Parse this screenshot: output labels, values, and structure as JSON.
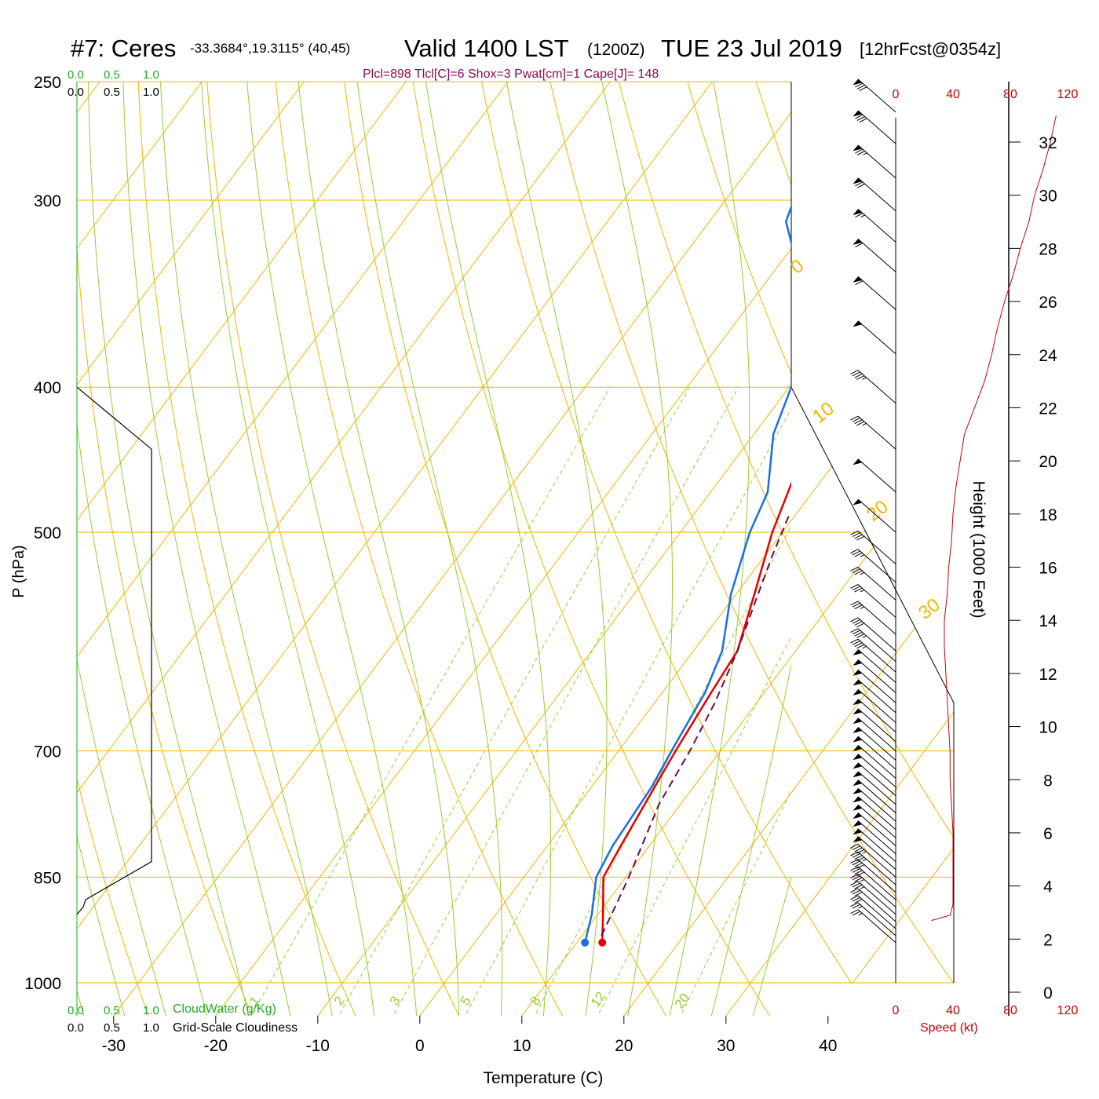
{
  "title": {
    "station": "#7: Ceres",
    "coords": "-33.3684°,19.3115° (40,45)",
    "valid": "Valid 1400 LST",
    "zulu": "(1200Z)",
    "date": "TUE 23 Jul 2019",
    "fcst": "[12hrFcst@0354z]"
  },
  "indices": "Plcl=898 Tlcl[C]=6 Shox=3 Pwat[cm]=1 Cape[J]= 148",
  "cloud_scale_top": {
    "green": [
      "0.0",
      "0.5",
      "1.0"
    ],
    "black": [
      "0.0",
      "0.5",
      "1.0"
    ]
  },
  "cloud_scale_bottom": {
    "green": [
      "0.0",
      "0.5",
      "1.0"
    ],
    "black": [
      "0.0",
      "0.5",
      "1.0"
    ]
  },
  "cloud_water_label": "CloudWater (g/Kg)",
  "cloudiness_label": "Grid-Scale Cloudiness",
  "speed_label": "Speed (kt)",
  "height_label": "Height (1000 Feet)",
  "colors": {
    "isotherm": "#f2b400",
    "mixing": "#99cc33",
    "temperature": "#e60000",
    "dewpoint": "#1a6fe0",
    "parcel": "#6b0a4a",
    "cloudwater": "#22aa22",
    "wind_speed": "#cc0000"
  },
  "chart_data": {
    "type": "line",
    "xlabel": "Temperature (C)",
    "ylabel": "P (hPa)",
    "x_ticks": [
      -30,
      -20,
      -10,
      0,
      10,
      20,
      30,
      40
    ],
    "p_ticks": [
      250,
      300,
      400,
      500,
      700,
      850,
      1000
    ],
    "y_log": true,
    "xlim": [
      -33.6,
      36.4
    ],
    "plim": [
      250,
      1100
    ],
    "skewed_isotherm_labels": [
      "10",
      "0",
      "-10",
      "-20",
      "-30"
    ],
    "dry_adiabat_labels": [
      "0",
      "10",
      "20",
      "30"
    ],
    "mixing_ratio_labels": [
      "1",
      "2",
      "3",
      "5",
      "8",
      "12",
      "20"
    ],
    "series": [
      {
        "key": "temperature",
        "points": [
          [
            940,
            12.5
          ],
          [
            900,
            10.5
          ],
          [
            850,
            7.8
          ],
          [
            810,
            7.2
          ],
          [
            760,
            6.5
          ],
          [
            700,
            5.6
          ],
          [
            640,
            4.8
          ],
          [
            600,
            4.3
          ],
          [
            550,
            1.8
          ],
          [
            500,
            -1.0
          ],
          [
            460,
            -2.9
          ],
          [
            420,
            -4.4
          ],
          [
            400,
            -4.6
          ],
          [
            380,
            -4.6
          ],
          [
            360,
            -4.6
          ],
          [
            340,
            -3.8
          ],
          [
            320,
            -2.6
          ],
          [
            300,
            -1.8
          ],
          [
            290,
            -1.4
          ],
          [
            270,
            -0.9
          ]
        ]
      },
      {
        "key": "dewpoint",
        "points": [
          [
            940,
            10.8
          ],
          [
            900,
            9.4
          ],
          [
            850,
            7.1
          ],
          [
            810,
            6.4
          ],
          [
            780,
            6.2
          ],
          [
            740,
            5.9
          ],
          [
            700,
            5.2
          ],
          [
            640,
            4.2
          ],
          [
            600,
            2.8
          ],
          [
            550,
            -0.5
          ],
          [
            500,
            -3.2
          ],
          [
            470,
            -4.4
          ],
          [
            430,
            -8.1
          ],
          [
            400,
            -9.8
          ],
          [
            360,
            -12.9
          ],
          [
            330,
            -18.5
          ],
          [
            310,
            -22.5
          ],
          [
            300,
            -23.3
          ],
          [
            270,
            -25.3
          ]
        ]
      },
      {
        "key": "parcel",
        "points": [
          [
            930,
            11.9
          ],
          [
            898,
            11.3
          ],
          [
            850,
            10.3
          ],
          [
            800,
            9.0
          ],
          [
            760,
            7.9
          ],
          [
            700,
            7.0
          ],
          [
            650,
            5.9
          ],
          [
            600,
            4.3
          ],
          [
            560,
            2.6
          ],
          [
            520,
            0.8
          ],
          [
            485,
            -0.7
          ]
        ]
      }
    ],
    "surface_temperature": {
      "p": 940,
      "t": 12.5
    },
    "surface_dewpoint": {
      "p": 940,
      "t": 10.8
    },
    "cloudiness": [
      [
        400,
        0
      ],
      [
        440,
        0.95
      ],
      [
        830,
        0.95
      ],
      [
        880,
        0.11
      ],
      [
        890,
        0.08
      ],
      [
        900,
        0
      ]
    ],
    "wind_height_ticks": [
      0,
      2,
      4,
      6,
      8,
      10,
      12,
      14,
      16,
      18,
      20,
      22,
      24,
      26,
      28,
      30,
      32
    ],
    "wind_speed_ticks": [
      0,
      40,
      80,
      120
    ],
    "wind_speed_profile": [
      [
        2.7,
        25
      ],
      [
        2.9,
        38
      ],
      [
        3.3,
        40
      ],
      [
        3.8,
        40
      ],
      [
        5,
        40
      ],
      [
        6,
        40
      ],
      [
        7,
        39
      ],
      [
        8,
        38
      ],
      [
        9,
        38
      ],
      [
        10,
        37
      ],
      [
        11,
        36
      ],
      [
        12,
        35
      ],
      [
        13,
        34
      ],
      [
        14,
        34
      ],
      [
        15,
        36
      ],
      [
        16,
        37
      ],
      [
        17,
        39
      ],
      [
        18,
        40
      ],
      [
        19,
        42
      ],
      [
        20,
        45
      ],
      [
        21,
        48
      ],
      [
        22,
        55
      ],
      [
        23,
        62
      ],
      [
        24,
        67
      ],
      [
        25,
        71
      ],
      [
        26,
        76
      ],
      [
        27,
        82
      ],
      [
        28,
        87
      ],
      [
        29,
        93
      ],
      [
        30,
        97
      ],
      [
        31,
        103
      ],
      [
        32,
        108
      ],
      [
        33,
        112
      ]
    ],
    "wind_barbs": [
      {
        "p": 940,
        "dir": 300,
        "spd": 25
      },
      {
        "p": 930,
        "dir": 300,
        "spd": 28
      },
      {
        "p": 920,
        "dir": 295,
        "spd": 30
      },
      {
        "p": 910,
        "dir": 295,
        "spd": 32
      },
      {
        "p": 900,
        "dir": 293,
        "spd": 35
      },
      {
        "p": 890,
        "dir": 292,
        "spd": 38
      },
      {
        "p": 880,
        "dir": 290,
        "spd": 40
      },
      {
        "p": 870,
        "dir": 290,
        "spd": 42
      },
      {
        "p": 860,
        "dir": 290,
        "spd": 45
      },
      {
        "p": 850,
        "dir": 290,
        "spd": 48
      },
      {
        "p": 840,
        "dir": 290,
        "spd": 50
      },
      {
        "p": 830,
        "dir": 290,
        "spd": 50
      },
      {
        "p": 820,
        "dir": 290,
        "spd": 52
      },
      {
        "p": 810,
        "dir": 290,
        "spd": 52
      },
      {
        "p": 800,
        "dir": 290,
        "spd": 52
      },
      {
        "p": 790,
        "dir": 290,
        "spd": 52
      },
      {
        "p": 780,
        "dir": 290,
        "spd": 52
      },
      {
        "p": 770,
        "dir": 290,
        "spd": 52
      },
      {
        "p": 760,
        "dir": 290,
        "spd": 52
      },
      {
        "p": 750,
        "dir": 290,
        "spd": 52
      },
      {
        "p": 740,
        "dir": 290,
        "spd": 52
      },
      {
        "p": 730,
        "dir": 290,
        "spd": 52
      },
      {
        "p": 720,
        "dir": 290,
        "spd": 52
      },
      {
        "p": 710,
        "dir": 290,
        "spd": 52
      },
      {
        "p": 700,
        "dir": 290,
        "spd": 52
      },
      {
        "p": 690,
        "dir": 292,
        "spd": 52
      },
      {
        "p": 680,
        "dir": 295,
        "spd": 52
      },
      {
        "p": 670,
        "dir": 298,
        "spd": 52
      },
      {
        "p": 660,
        "dir": 300,
        "spd": 52
      },
      {
        "p": 650,
        "dir": 303,
        "spd": 52
      },
      {
        "p": 640,
        "dir": 305,
        "spd": 52
      },
      {
        "p": 630,
        "dir": 308,
        "spd": 50
      },
      {
        "p": 620,
        "dir": 310,
        "spd": 48
      },
      {
        "p": 610,
        "dir": 312,
        "spd": 45
      },
      {
        "p": 600,
        "dir": 315,
        "spd": 40
      },
      {
        "p": 585,
        "dir": 315,
        "spd": 35
      },
      {
        "p": 570,
        "dir": 315,
        "spd": 35
      },
      {
        "p": 555,
        "dir": 315,
        "spd": 35
      },
      {
        "p": 540,
        "dir": 315,
        "spd": 35
      },
      {
        "p": 525,
        "dir": 315,
        "spd": 40
      },
      {
        "p": 500,
        "dir": 315,
        "spd": 50
      },
      {
        "p": 470,
        "dir": 315,
        "spd": 50
      },
      {
        "p": 440,
        "dir": 315,
        "spd": 45
      },
      {
        "p": 410,
        "dir": 315,
        "spd": 45
      },
      {
        "p": 380,
        "dir": 315,
        "spd": 50
      },
      {
        "p": 355,
        "dir": 315,
        "spd": 60
      },
      {
        "p": 335,
        "dir": 315,
        "spd": 60
      },
      {
        "p": 320,
        "dir": 315,
        "spd": 65
      },
      {
        "p": 305,
        "dir": 315,
        "spd": 70
      },
      {
        "p": 290,
        "dir": 315,
        "spd": 75
      },
      {
        "p": 275,
        "dir": 315,
        "spd": 80
      },
      {
        "p": 262,
        "dir": 315,
        "spd": 80
      }
    ]
  }
}
